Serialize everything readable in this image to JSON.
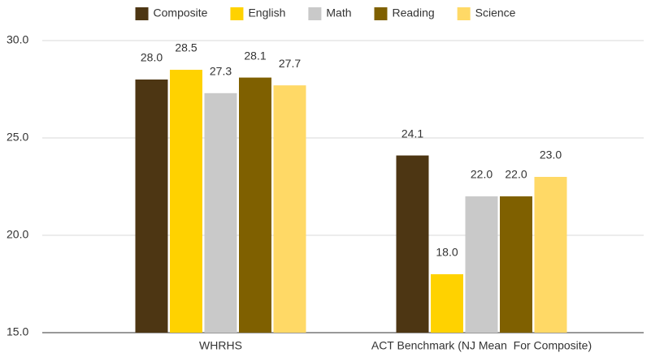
{
  "chart_data": {
    "type": "bar",
    "categories": [
      "WHRHS",
      "ACT Benchmark (NJ Mean  For Composite)"
    ],
    "series": [
      {
        "name": "Composite",
        "color": "#4d3613",
        "values": [
          28.0,
          24.1
        ],
        "value_labels": [
          "28.0",
          "24.1"
        ]
      },
      {
        "name": "English",
        "color": "#ffd200",
        "values": [
          28.5,
          18.0
        ],
        "value_labels": [
          "28.5",
          "18.0"
        ]
      },
      {
        "name": "Math",
        "color": "#c9c9c9",
        "values": [
          27.3,
          22.0
        ],
        "value_labels": [
          "27.3",
          "22.0"
        ]
      },
      {
        "name": "Reading",
        "color": "#7f6000",
        "values": [
          28.1,
          22.0
        ],
        "value_labels": [
          "28.1",
          "22.0"
        ]
      },
      {
        "name": "Science",
        "color": "#ffd966",
        "values": [
          27.7,
          23.0
        ],
        "value_labels": [
          "27.7",
          "23.0"
        ]
      }
    ],
    "ylim": [
      15,
      30
    ],
    "yticks": [
      {
        "value": 15,
        "label": "15.0"
      },
      {
        "value": 20,
        "label": "20.0"
      },
      {
        "value": 25,
        "label": "25.0"
      },
      {
        "value": 30,
        "label": "30.0"
      }
    ],
    "grid": true,
    "legend": "top"
  }
}
